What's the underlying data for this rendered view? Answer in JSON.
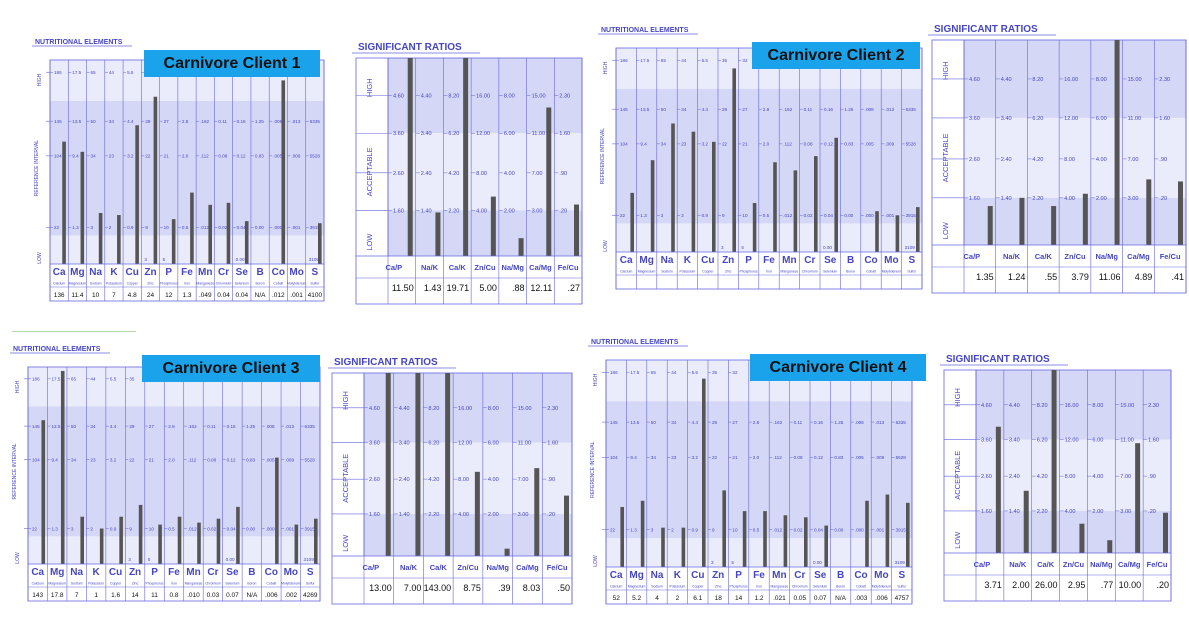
{
  "colors": {
    "frame": "#6666e0",
    "text": "#4646c4",
    "band_dark": "#d4d7f6",
    "band_light": "#ebecfb",
    "bar": "#555555",
    "client_label_bg": "#1aa3ea",
    "guide": "#b7d9a8"
  },
  "elements_chart": {
    "title": "NUTRITIONAL ELEMENTS",
    "y_label": "REFERENCE INTERVAL",
    "level_labels": [
      "HIGH",
      "LOW"
    ],
    "symbols": [
      "Ca",
      "Mg",
      "Na",
      "K",
      "Cu",
      "Zn",
      "P",
      "Fe",
      "Mn",
      "Cr",
      "Se",
      "B",
      "Co",
      "Mo",
      "S"
    ],
    "names": [
      "Calcium",
      "Magnesium",
      "Sodium",
      "Potassium",
      "Copper",
      "Zinc",
      "Phosphorus",
      "Iron",
      "Manganese",
      "Chromium",
      "Selenium",
      "Boron",
      "Cobalt",
      "Molybdenum",
      "Sulfur"
    ],
    "scale_rows": [
      [
        "186",
        "17.5",
        "65",
        "44",
        "5.5",
        "35",
        "32",
        "",
        "",
        "",
        "",
        "",
        "",
        "",
        "",
        ""
      ],
      [
        "145",
        "13.5",
        "50",
        "34",
        "4.4",
        "29",
        "27",
        "2.8",
        ".162",
        "0.11",
        "0.16",
        "1.25",
        ".008",
        ".013",
        "6335"
      ],
      [
        "104",
        "9.4",
        "34",
        "23",
        "3.2",
        "22",
        "21",
        "2.0",
        ".112",
        "0.08",
        "0.12",
        "0.83",
        ".005",
        ".009",
        "5528"
      ],
      [
        "22",
        "1.3",
        "3",
        "2",
        "0.9",
        "9",
        "10",
        "0.5",
        ".012",
        "0.02",
        "0.04",
        "0.00",
        ".000",
        ".001",
        "3915"
      ]
    ],
    "low_marks": {
      "zn": "3",
      "p": "5",
      "se": "0.00",
      "s": "3109"
    },
    "y_range": [
      0,
      1
    ]
  },
  "ratios_chart": {
    "title": "SIGNIFICANT RATIOS",
    "level_labels": [
      "HIGH",
      "ACCEPTABLE",
      "LOW"
    ],
    "categories": [
      "Ca/P",
      "Na/K",
      "Ca/K",
      "Zn/Cu",
      "Na/Mg",
      "Ca/Mg",
      "Fe/Cu"
    ],
    "scale_rows": [
      [
        "4.60",
        "4.40",
        "8.20",
        "16.00",
        "8.00",
        "15.00",
        "2.30"
      ],
      [
        "3.60",
        "3.40",
        "6.20",
        "12.00",
        "6.00",
        "11.00",
        "1.60"
      ],
      [
        "2.60",
        "2.40",
        "4.20",
        "8.00",
        "4.00",
        "7.00",
        ".90"
      ],
      [
        "1.60",
        "1.40",
        "2.20",
        "4.00",
        "2.00",
        "3.00",
        ".20"
      ]
    ],
    "y_range": [
      0,
      1
    ]
  },
  "clients": [
    {
      "label": "Carnivore Client 1",
      "elements": {
        "values": [
          "136",
          "11.4",
          "10",
          "7",
          "4.8",
          "24",
          "12",
          "1.3",
          ".049",
          "0.04",
          "0.04",
          "N/A",
          ".012",
          ".001",
          "4100"
        ],
        "levels": [
          0.6,
          0.55,
          0.25,
          0.24,
          0.68,
          0.82,
          0.22,
          0.35,
          0.29,
          0.3,
          0.21,
          0.0,
          0.9,
          0.0,
          0.2
        ]
      },
      "ratios": {
        "values": [
          "11.50",
          "1.43",
          "19.71",
          "5.00",
          ".88",
          "12.11",
          ".27"
        ],
        "levels": [
          1.0,
          0.22,
          1.0,
          0.3,
          0.09,
          0.75,
          0.26
        ]
      }
    },
    {
      "label": "Carnivore Client 2",
      "elements": {
        "values": [
          "",
          "",
          "",
          "",
          "",
          "",
          "",
          "",
          "",
          "",
          "",
          "",
          "",
          "",
          ""
        ],
        "levels": [
          0.29,
          0.45,
          0.63,
          0.59,
          0.54,
          0.9,
          0.24,
          0.44,
          0.4,
          0.47,
          0.56,
          0.0,
          0.2,
          0.18,
          0.22
        ]
      },
      "ratios": {
        "values": [
          "1.35",
          "1.24",
          ".55",
          "3.79",
          "11.06",
          "4.89",
          ".41"
        ],
        "levels": [
          0.19,
          0.23,
          0.19,
          0.25,
          1.0,
          0.32,
          0.31
        ]
      }
    },
    {
      "label": "Carnivore Client 3",
      "elements": {
        "values": [
          "143",
          "17.8",
          "7",
          "1",
          "1.6",
          "14",
          "11",
          "0.8",
          ".010",
          "0.03",
          "0.07",
          "N/A",
          ".006",
          ".002",
          "4269"
        ],
        "levels": [
          0.73,
          0.98,
          0.24,
          0.18,
          0.24,
          0.3,
          0.2,
          0.24,
          0.21,
          0.23,
          0.29,
          0.0,
          0.54,
          0.2,
          0.23
        ]
      },
      "ratios": {
        "values": [
          "13.00",
          "7.00",
          "143.00",
          "8.75",
          ".39",
          "8.03",
          ".50"
        ],
        "levels": [
          1.0,
          1.0,
          1.0,
          0.46,
          0.04,
          0.48,
          0.33
        ]
      }
    },
    {
      "label": "Carnivore Client 4",
      "elements": {
        "values": [
          "52",
          "5.2",
          "4",
          "2",
          "6.1",
          "18",
          "14",
          "1.2",
          ".021",
          "0.05",
          "0.07",
          "N/A",
          ".003",
          ".006",
          "4757"
        ],
        "levels": [
          0.29,
          0.32,
          0.19,
          0.19,
          0.91,
          0.37,
          0.27,
          0.27,
          0.25,
          0.24,
          0.2,
          0.0,
          0.32,
          0.35,
          0.31
        ]
      },
      "ratios": {
        "values": [
          "3.71",
          "2.00",
          "26.00",
          "2.95",
          ".77",
          "10.00",
          ".20"
        ],
        "levels": [
          0.69,
          0.34,
          1.0,
          0.16,
          0.07,
          0.6,
          0.22
        ]
      }
    }
  ]
}
